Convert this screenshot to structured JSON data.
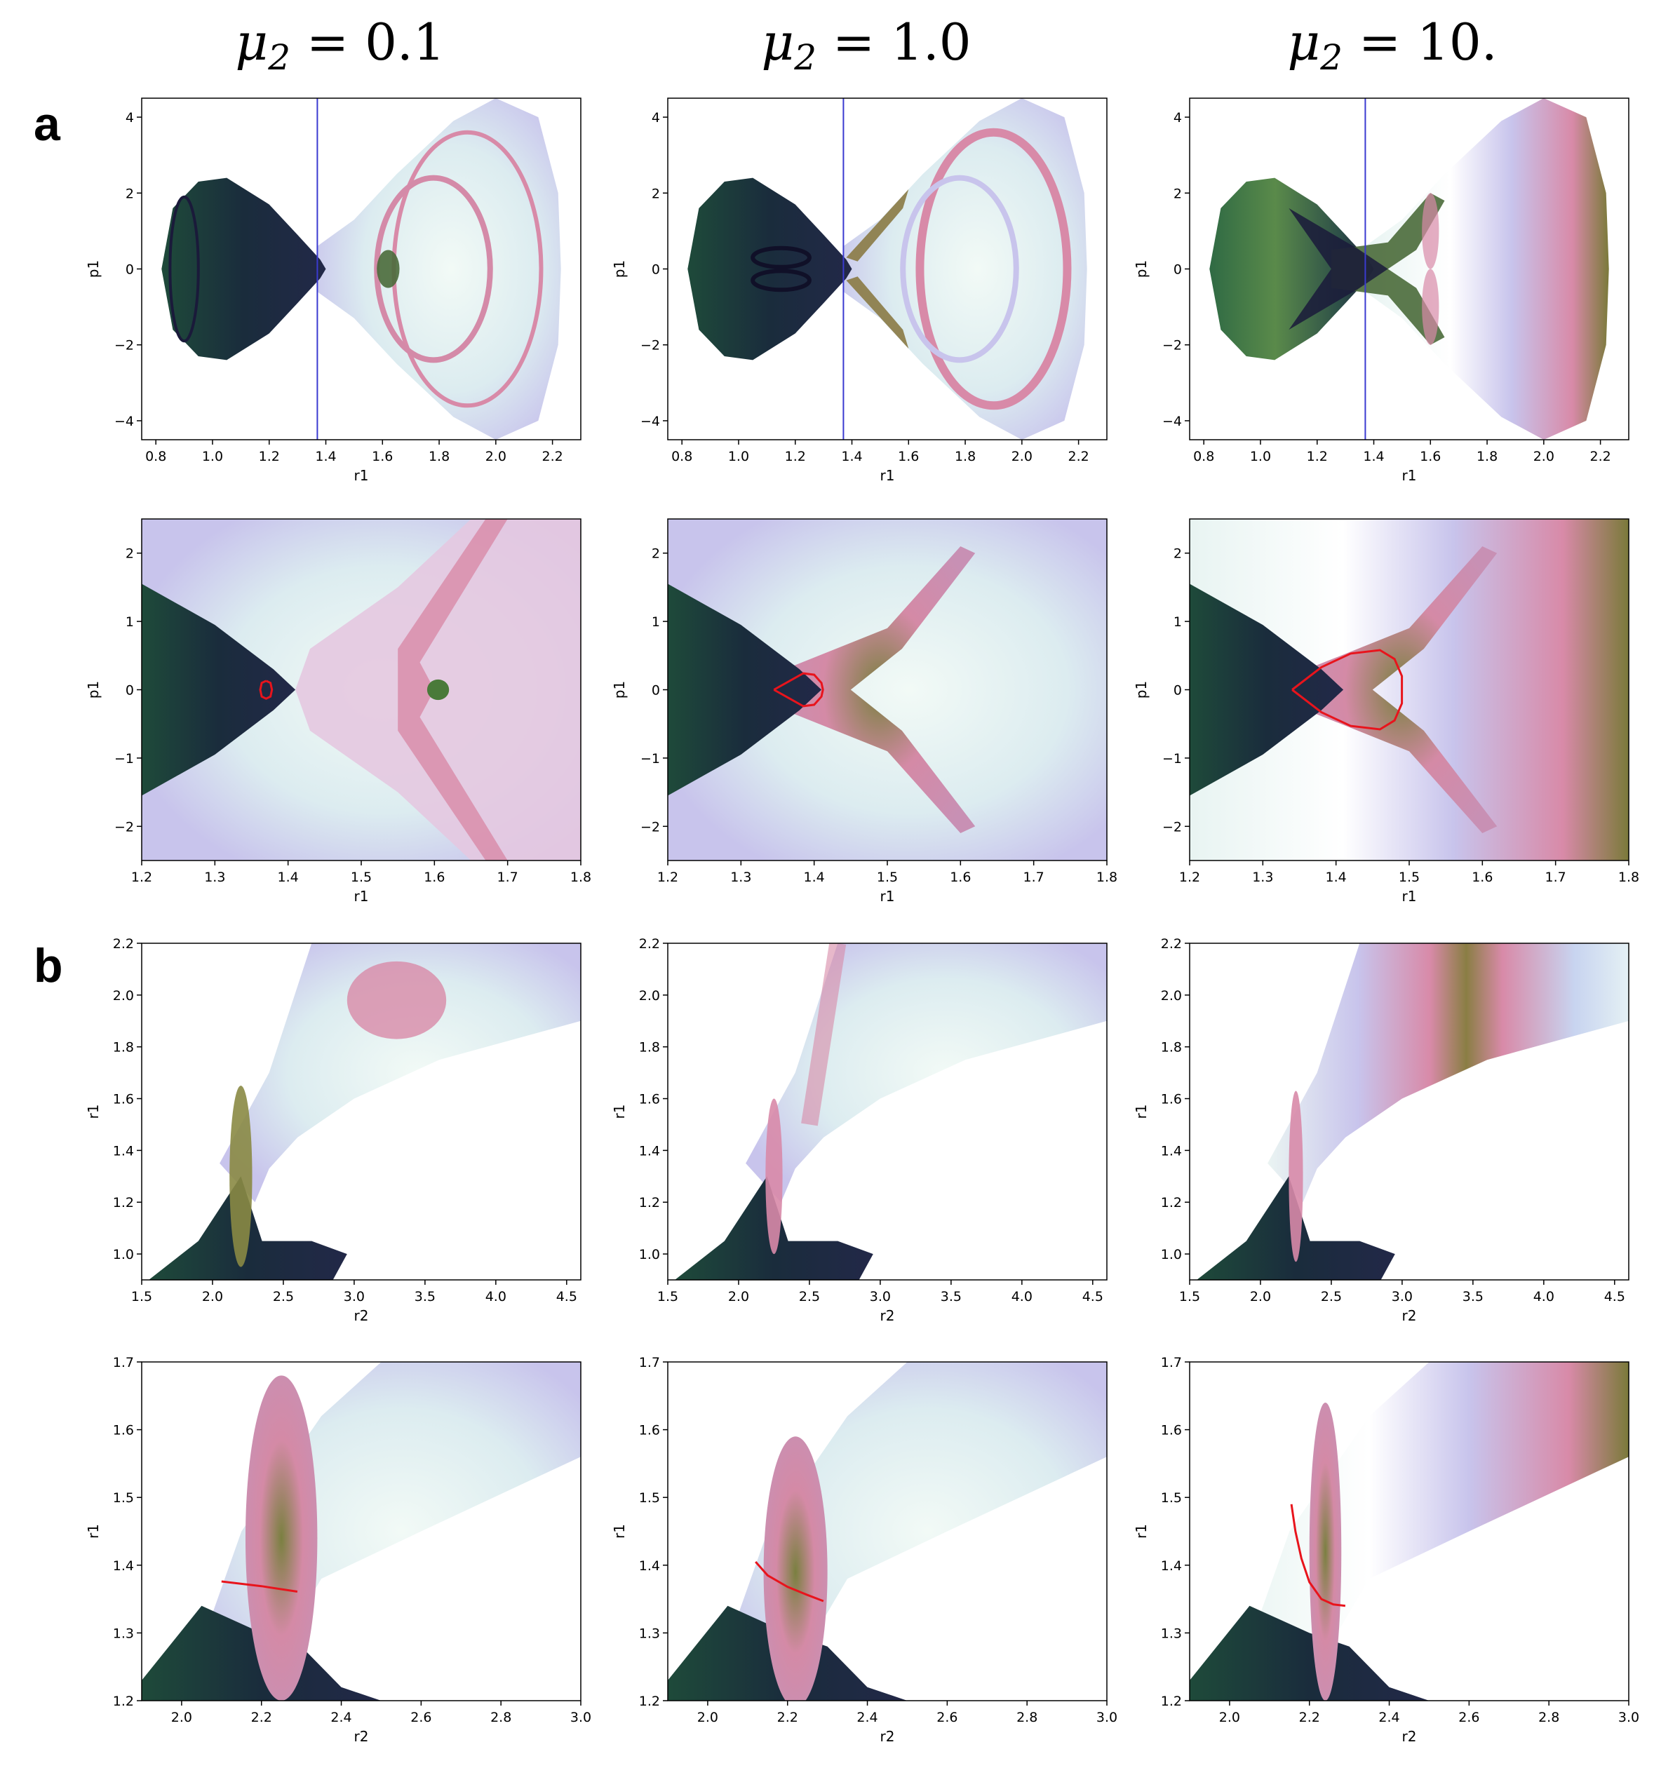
{
  "figure": {
    "panel_labels": [
      "a",
      "b"
    ],
    "columns": [
      {
        "mu": "μ",
        "sub": "2",
        "rhs": " = 0.1"
      },
      {
        "mu": "μ",
        "sub": "2",
        "rhs": " = 1.0"
      },
      {
        "mu": "μ",
        "sub": "2",
        "rhs": " = 10."
      }
    ]
  },
  "colors": {
    "dark_navy": "#1a1a3a",
    "dark_green": "#1f4d3c",
    "olive": "#7a7a3a",
    "pink": "#d88aa8",
    "lavender": "#c8c0ec",
    "pale": "#e6f2f2",
    "curve_red": "#e8141c",
    "line_blue": "#3a3ad0"
  },
  "chart_data": [
    {
      "type": "heatmap",
      "panel": "a",
      "row": 1,
      "col": 1,
      "mu2": "0.1",
      "xlabel": "r1",
      "ylabel": "p1",
      "xlim": [
        0.75,
        2.3
      ],
      "ylim": [
        -4.5,
        4.5
      ],
      "xticks": [
        0.8,
        1.0,
        1.2,
        1.4,
        1.6,
        1.8,
        2.0,
        2.2
      ],
      "xtick_labels": [
        "0.8",
        "1.0",
        "1.2",
        "1.4",
        "1.6",
        "1.8",
        "2.0",
        "2.2"
      ],
      "yticks": [
        -4,
        -2,
        0,
        2,
        4
      ],
      "ytick_labels": [
        "−4",
        "−2",
        "0",
        "2",
        "4"
      ],
      "vline_x": 1.37
    },
    {
      "type": "heatmap",
      "panel": "a",
      "row": 1,
      "col": 2,
      "mu2": "1.0",
      "xlabel": "r1",
      "ylabel": "p1",
      "xlim": [
        0.75,
        2.3
      ],
      "ylim": [
        -4.5,
        4.5
      ],
      "xticks": [
        0.8,
        1.0,
        1.2,
        1.4,
        1.6,
        1.8,
        2.0,
        2.2
      ],
      "xtick_labels": [
        "0.8",
        "1.0",
        "1.2",
        "1.4",
        "1.6",
        "1.8",
        "2.0",
        "2.2"
      ],
      "yticks": [
        -4,
        -2,
        0,
        2,
        4
      ],
      "ytick_labels": [
        "−4",
        "−2",
        "0",
        "2",
        "4"
      ],
      "vline_x": 1.37
    },
    {
      "type": "heatmap",
      "panel": "a",
      "row": 1,
      "col": 3,
      "mu2": "10.",
      "xlabel": "r1",
      "ylabel": "p1",
      "xlim": [
        0.75,
        2.3
      ],
      "ylim": [
        -4.5,
        4.5
      ],
      "xticks": [
        0.8,
        1.0,
        1.2,
        1.4,
        1.6,
        1.8,
        2.0,
        2.2
      ],
      "xtick_labels": [
        "0.8",
        "1.0",
        "1.2",
        "1.4",
        "1.6",
        "1.8",
        "2.0",
        "2.2"
      ],
      "yticks": [
        -4,
        -2,
        0,
        2,
        4
      ],
      "ytick_labels": [
        "−4",
        "−2",
        "0",
        "2",
        "4"
      ],
      "vline_x": 1.37
    },
    {
      "type": "heatmap",
      "panel": "a",
      "row": 2,
      "col": 1,
      "mu2": "0.1",
      "xlabel": "r1",
      "ylabel": "p1",
      "xlim": [
        1.2,
        1.8
      ],
      "ylim": [
        -2.5,
        2.5
      ],
      "xticks": [
        1.2,
        1.3,
        1.4,
        1.5,
        1.6,
        1.7,
        1.8
      ],
      "xtick_labels": [
        "1.2",
        "1.3",
        "1.4",
        "1.5",
        "1.6",
        "1.7",
        "1.8"
      ],
      "yticks": [
        -2,
        -1,
        0,
        1,
        2
      ],
      "ytick_labels": [
        "−2",
        "−1",
        "0",
        "1",
        "2"
      ],
      "red_curve": [
        [
          1.37,
          0.13
        ],
        [
          1.376,
          0.1
        ],
        [
          1.378,
          0
        ],
        [
          1.376,
          -0.1
        ],
        [
          1.37,
          -0.13
        ],
        [
          1.364,
          -0.1
        ],
        [
          1.362,
          0
        ],
        [
          1.364,
          0.1
        ],
        [
          1.37,
          0.13
        ]
      ]
    },
    {
      "type": "heatmap",
      "panel": "a",
      "row": 2,
      "col": 2,
      "mu2": "1.0",
      "xlabel": "r1",
      "ylabel": "p1",
      "xlim": [
        1.2,
        1.8
      ],
      "ylim": [
        -2.5,
        2.5
      ],
      "xticks": [
        1.2,
        1.3,
        1.4,
        1.5,
        1.6,
        1.7,
        1.8
      ],
      "xtick_labels": [
        "1.2",
        "1.3",
        "1.4",
        "1.5",
        "1.6",
        "1.7",
        "1.8"
      ],
      "yticks": [
        -2,
        -1,
        0,
        1,
        2
      ],
      "ytick_labels": [
        "−2",
        "−1",
        "0",
        "1",
        "2"
      ],
      "red_curve": [
        [
          1.345,
          0
        ],
        [
          1.365,
          0.12
        ],
        [
          1.385,
          0.24
        ],
        [
          1.4,
          0.22
        ],
        [
          1.41,
          0.1
        ],
        [
          1.412,
          0
        ],
        [
          1.41,
          -0.1
        ],
        [
          1.4,
          -0.22
        ],
        [
          1.385,
          -0.24
        ],
        [
          1.365,
          -0.12
        ],
        [
          1.345,
          0
        ]
      ]
    },
    {
      "type": "heatmap",
      "panel": "a",
      "row": 2,
      "col": 3,
      "mu2": "10.",
      "xlabel": "r1",
      "ylabel": "p1",
      "xlim": [
        1.2,
        1.8
      ],
      "ylim": [
        -2.5,
        2.5
      ],
      "xticks": [
        1.2,
        1.3,
        1.4,
        1.5,
        1.6,
        1.7,
        1.8
      ],
      "xtick_labels": [
        "1.2",
        "1.3",
        "1.4",
        "1.5",
        "1.6",
        "1.7",
        "1.8"
      ],
      "yticks": [
        -2,
        -1,
        0,
        1,
        2
      ],
      "ytick_labels": [
        "−2",
        "−1",
        "0",
        "1",
        "2"
      ],
      "red_curve": [
        [
          1.34,
          0
        ],
        [
          1.38,
          0.33
        ],
        [
          1.42,
          0.53
        ],
        [
          1.46,
          0.58
        ],
        [
          1.48,
          0.45
        ],
        [
          1.49,
          0.2
        ],
        [
          1.49,
          0
        ],
        [
          1.49,
          -0.2
        ],
        [
          1.48,
          -0.45
        ],
        [
          1.46,
          -0.58
        ],
        [
          1.42,
          -0.53
        ],
        [
          1.38,
          -0.33
        ],
        [
          1.34,
          0
        ]
      ]
    },
    {
      "type": "heatmap",
      "panel": "b",
      "row": 3,
      "col": 1,
      "mu2": "0.1",
      "xlabel": "r2",
      "ylabel": "r1",
      "xlim": [
        1.5,
        4.6
      ],
      "ylim": [
        0.9,
        2.2
      ],
      "xticks": [
        1.5,
        2.0,
        2.5,
        3.0,
        3.5,
        4.0,
        4.5
      ],
      "xtick_labels": [
        "1.5",
        "2.0",
        "2.5",
        "3.0",
        "3.5",
        "4.0",
        "4.5"
      ],
      "yticks": [
        1.0,
        1.2,
        1.4,
        1.6,
        1.8,
        2.0,
        2.2
      ],
      "ytick_labels": [
        "1.0",
        "1.2",
        "1.4",
        "1.6",
        "1.8",
        "2.0",
        "2.2"
      ]
    },
    {
      "type": "heatmap",
      "panel": "b",
      "row": 3,
      "col": 2,
      "mu2": "1.0",
      "xlabel": "r2",
      "ylabel": "r1",
      "xlim": [
        1.5,
        4.6
      ],
      "ylim": [
        0.9,
        2.2
      ],
      "xticks": [
        1.5,
        2.0,
        2.5,
        3.0,
        3.5,
        4.0,
        4.5
      ],
      "xtick_labels": [
        "1.5",
        "2.0",
        "2.5",
        "3.0",
        "3.5",
        "4.0",
        "4.5"
      ],
      "yticks": [
        1.0,
        1.2,
        1.4,
        1.6,
        1.8,
        2.0,
        2.2
      ],
      "ytick_labels": [
        "1.0",
        "1.2",
        "1.4",
        "1.6",
        "1.8",
        "2.0",
        "2.2"
      ]
    },
    {
      "type": "heatmap",
      "panel": "b",
      "row": 3,
      "col": 3,
      "mu2": "10.",
      "xlabel": "r2",
      "ylabel": "r1",
      "xlim": [
        1.5,
        4.6
      ],
      "ylim": [
        0.9,
        2.2
      ],
      "xticks": [
        1.5,
        2.0,
        2.5,
        3.0,
        3.5,
        4.0,
        4.5
      ],
      "xtick_labels": [
        "1.5",
        "2.0",
        "2.5",
        "3.0",
        "3.5",
        "4.0",
        "4.5"
      ],
      "yticks": [
        1.0,
        1.2,
        1.4,
        1.6,
        1.8,
        2.0,
        2.2
      ],
      "ytick_labels": [
        "1.0",
        "1.2",
        "1.4",
        "1.6",
        "1.8",
        "2.0",
        "2.2"
      ]
    },
    {
      "type": "heatmap",
      "panel": "b",
      "row": 4,
      "col": 1,
      "mu2": "0.1",
      "xlabel": "r2",
      "ylabel": "r1",
      "xlim": [
        1.9,
        3.0
      ],
      "ylim": [
        1.2,
        1.7
      ],
      "xticks": [
        2.0,
        2.2,
        2.4,
        2.6,
        2.8,
        3.0
      ],
      "xtick_labels": [
        "2.0",
        "2.2",
        "2.4",
        "2.6",
        "2.8",
        "3.0"
      ],
      "yticks": [
        1.2,
        1.3,
        1.4,
        1.5,
        1.6,
        1.7
      ],
      "ytick_labels": [
        "1.2",
        "1.3",
        "1.4",
        "1.5",
        "1.6",
        "1.7"
      ],
      "red_curve": [
        [
          2.1,
          1.376
        ],
        [
          2.2,
          1.369
        ],
        [
          2.29,
          1.361
        ]
      ]
    },
    {
      "type": "heatmap",
      "panel": "b",
      "row": 4,
      "col": 2,
      "mu2": "1.0",
      "xlabel": "r2",
      "ylabel": "r1",
      "xlim": [
        1.9,
        3.0
      ],
      "ylim": [
        1.2,
        1.7
      ],
      "xticks": [
        2.0,
        2.2,
        2.4,
        2.6,
        2.8,
        3.0
      ],
      "xtick_labels": [
        "2.0",
        "2.2",
        "2.4",
        "2.6",
        "2.8",
        "3.0"
      ],
      "yticks": [
        1.2,
        1.3,
        1.4,
        1.5,
        1.6,
        1.7
      ],
      "ytick_labels": [
        "1.2",
        "1.3",
        "1.4",
        "1.5",
        "1.6",
        "1.7"
      ],
      "red_curve": [
        [
          2.12,
          1.405
        ],
        [
          2.15,
          1.385
        ],
        [
          2.2,
          1.368
        ],
        [
          2.25,
          1.356
        ],
        [
          2.29,
          1.347
        ]
      ]
    },
    {
      "type": "heatmap",
      "panel": "b",
      "row": 4,
      "col": 3,
      "mu2": "10.",
      "xlabel": "r2",
      "ylabel": "r1",
      "xlim": [
        1.9,
        3.0
      ],
      "ylim": [
        1.2,
        1.7
      ],
      "xticks": [
        2.0,
        2.2,
        2.4,
        2.6,
        2.8,
        3.0
      ],
      "xtick_labels": [
        "2.0",
        "2.2",
        "2.4",
        "2.6",
        "2.8",
        "3.0"
      ],
      "yticks": [
        1.2,
        1.3,
        1.4,
        1.5,
        1.6,
        1.7
      ],
      "ytick_labels": [
        "1.2",
        "1.3",
        "1.4",
        "1.5",
        "1.6",
        "1.7"
      ],
      "red_curve": [
        [
          2.155,
          1.49
        ],
        [
          2.165,
          1.45
        ],
        [
          2.18,
          1.41
        ],
        [
          2.2,
          1.375
        ],
        [
          2.23,
          1.35
        ],
        [
          2.26,
          1.342
        ],
        [
          2.29,
          1.34
        ]
      ]
    }
  ]
}
